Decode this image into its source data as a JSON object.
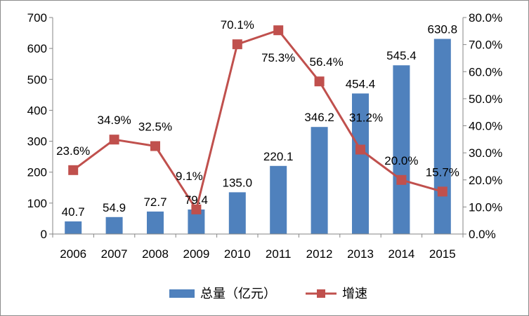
{
  "chart_data": {
    "type": "bar+line",
    "categories": [
      "2006",
      "2007",
      "2008",
      "2009",
      "2010",
      "2011",
      "2012",
      "2013",
      "2014",
      "2015"
    ],
    "series": [
      {
        "name": "总量（亿元）",
        "type": "bar",
        "axis": "left",
        "color": "#4F81BD",
        "values": [
          40.7,
          54.9,
          72.7,
          79.4,
          135.0,
          220.1,
          346.2,
          454.4,
          545.4,
          630.8
        ],
        "labels": [
          "40.7",
          "54.9",
          "72.7",
          "79.4",
          "135.0",
          "220.1",
          "346.2",
          "454.4",
          "545.4",
          "630.8"
        ]
      },
      {
        "name": "增速",
        "type": "line",
        "axis": "right",
        "color": "#C0504D",
        "values": [
          23.6,
          34.9,
          32.5,
          9.1,
          70.1,
          75.3,
          56.4,
          31.2,
          20.0,
          15.7
        ],
        "labels": [
          "23.6%",
          "34.9%",
          "32.5%",
          "9.1%",
          "70.1%",
          "75.3%",
          "56.4%",
          "31.2%",
          "20.0%",
          "15.7%"
        ]
      }
    ],
    "y_left": {
      "min": 0,
      "max": 700,
      "ticks": [
        "0",
        "100",
        "200",
        "300",
        "400",
        "500",
        "600",
        "700"
      ]
    },
    "y_right": {
      "min": 0,
      "max": 80,
      "ticks": [
        "0.0%",
        "10.0%",
        "20.0%",
        "30.0%",
        "40.0%",
        "50.0%",
        "60.0%",
        "70.0%",
        "80.0%"
      ]
    },
    "grid": false,
    "legend_position": "bottom"
  }
}
